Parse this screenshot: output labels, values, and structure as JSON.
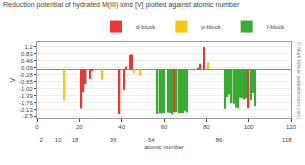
{
  "chart_data": {
    "type": "bar",
    "title": "Reduction potential of hydrated M(III) ions [V] plotted against atomic number",
    "xlabel": "atomic number",
    "ylabel": "V",
    "xlim": [
      0,
      120
    ],
    "xticks": [
      0,
      20,
      40,
      60,
      80,
      100,
      120
    ],
    "x2lim": [
      0,
      120
    ],
    "x2ticks": [
      2,
      10,
      18,
      36,
      54,
      86,
      118
    ],
    "ylim": [
      -2.6,
      1.45
    ],
    "yticks": [
      1.2,
      0.83,
      0.46,
      0.09,
      -0.28,
      -0.65,
      -1.02,
      -1.39,
      -1.76,
      -2.13,
      -2.5
    ],
    "grid": true,
    "legend": "upper right",
    "annotations": [
      "© Mark Winter (webelements.com)"
    ],
    "series": [
      {
        "name": "d-block",
        "color": "#e8383a",
        "x": [
          21,
          22,
          23,
          25,
          26,
          39,
          41,
          42,
          44,
          45,
          65,
          76,
          77,
          79,
          100
        ],
        "values": [
          -2.08,
          -1.21,
          -0.78,
          -0.51,
          -0.04,
          -2.37,
          -1.1,
          0.15,
          0.77,
          0.8,
          -2.28,
          0.08,
          0.29,
          1.19,
          -2.07
        ]
      },
      {
        "name": "p-block",
        "color": "#f5c518",
        "x": [
          13,
          31,
          46,
          49,
          81
        ],
        "values": [
          -1.66,
          -0.56,
          -0.2,
          -0.34,
          0.37
        ]
      },
      {
        "name": "f-block",
        "color": "#3aaa35",
        "x": [
          57,
          58,
          59,
          60,
          62,
          63,
          64,
          66,
          67,
          68,
          69,
          70,
          71,
          89,
          90,
          91,
          92,
          93,
          94,
          95,
          96,
          97,
          98,
          99,
          101,
          102,
          103
        ],
        "values": [
          -2.38,
          -2.34,
          -2.35,
          -2.32,
          -2.3,
          -2.32,
          -2.4,
          -2.28,
          -2.33,
          -2.32,
          -2.32,
          -2.2,
          -2.3,
          -2.1,
          -1.47,
          -1.34,
          -1.79,
          -1.83,
          -2.03,
          -2.07,
          -1.51,
          -1.54,
          -1.6,
          -1.55,
          -1.65,
          -1.26,
          -1.96
        ]
      }
    ]
  }
}
